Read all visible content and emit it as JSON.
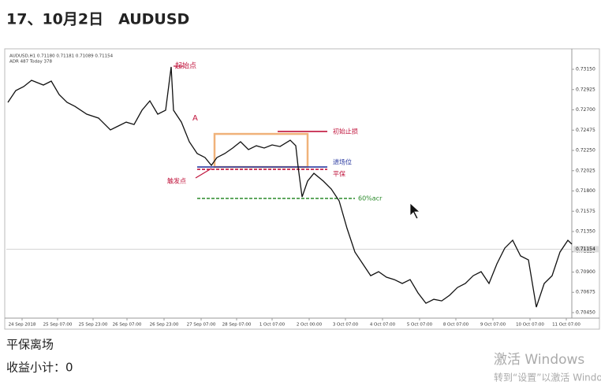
{
  "header": {
    "title": "17、10月2日　AUDUSD"
  },
  "chart_data": {
    "type": "line",
    "info": [
      "AUDUSD,H1  0.71180 0.71181 0.71089 0.71154",
      "ADR 487  Today 378"
    ],
    "series": [
      {
        "color": "#111111",
        "x": [
          2,
          12,
          22,
          32,
          47,
          57,
          67,
          77,
          87,
          102,
          117,
          132,
          142,
          152,
          162,
          172,
          182,
          192,
          202,
          209,
          212,
          222,
          232,
          242,
          252,
          260,
          267,
          277,
          287,
          297,
          307,
          317,
          327,
          337,
          347,
          360,
          367,
          370,
          375,
          382,
          390,
          402,
          412,
          422,
          432,
          442,
          452,
          462,
          472,
          482,
          492,
          502,
          512,
          522,
          532,
          542,
          552,
          562,
          572,
          582,
          592,
          602,
          612,
          622,
          632,
          642,
          652,
          662,
          672,
          682,
          692,
          702,
          712,
          717
        ],
        "values": [
          0.72783,
          0.72914,
          0.72958,
          0.73028,
          0.72975,
          0.73019,
          0.7287,
          0.72783,
          0.72739,
          0.72652,
          0.72608,
          0.72477,
          0.72521,
          0.72564,
          0.72538,
          0.72696,
          0.728,
          0.72652,
          0.72696,
          0.73176,
          0.72696,
          0.72564,
          0.72346,
          0.72215,
          0.72171,
          0.72084,
          0.72171,
          0.72215,
          0.72276,
          0.72346,
          0.72259,
          0.72302,
          0.72276,
          0.72311,
          0.72293,
          0.72363,
          0.72302,
          0.72066,
          0.71734,
          0.71909,
          0.71996,
          0.71909,
          0.71822,
          0.7169,
          0.71385,
          0.71122,
          0.70991,
          0.7086,
          0.70904,
          0.70843,
          0.70816,
          0.70773,
          0.70816,
          0.70668,
          0.70554,
          0.70598,
          0.7058,
          0.70642,
          0.70729,
          0.70773,
          0.7086,
          0.70904,
          0.70773,
          0.70991,
          0.71166,
          0.71253,
          0.71079,
          0.71035,
          0.70511,
          0.70773,
          0.7086,
          0.71122,
          0.71253,
          0.7121
        ]
      }
    ],
    "xlim": [
      0,
      717
    ],
    "xticks": [
      {
        "value": 20,
        "label": "24 Sep 2018"
      },
      {
        "value": 65,
        "label": "25 Sep 07:00"
      },
      {
        "value": 110,
        "label": "25 Sep 23:00"
      },
      {
        "value": 153,
        "label": "26 Sep 07:00"
      },
      {
        "value": 200,
        "label": "26 Sep 23:00"
      },
      {
        "value": 247,
        "label": "27 Sep 07:00"
      },
      {
        "value": 292,
        "label": "28 Sep 07:00"
      },
      {
        "value": 337,
        "label": "1 Oct 07:00"
      },
      {
        "value": 384,
        "label": "2 Oct 00:00"
      },
      {
        "value": 430,
        "label": "3 Oct 07:00"
      },
      {
        "value": 477,
        "label": "4 Oct 07:00"
      },
      {
        "value": 524,
        "label": "5 Oct 07:00"
      },
      {
        "value": 570,
        "label": "8 Oct 07:00"
      },
      {
        "value": 617,
        "label": "9 Oct 07:00"
      },
      {
        "value": 664,
        "label": "10 Oct 07:00"
      },
      {
        "value": 710,
        "label": "11 Oct 07:00"
      }
    ],
    "ylim": [
      0.7038,
      0.7329
    ],
    "yticks": [
      {
        "value": 0.7315,
        "label": "0.73150"
      },
      {
        "value": 0.72925,
        "label": "0.72925"
      },
      {
        "value": 0.727,
        "label": "0.72700"
      },
      {
        "value": 0.72475,
        "label": "0.72475"
      },
      {
        "value": 0.7225,
        "label": "0.72250"
      },
      {
        "value": 0.72025,
        "label": "0.72025"
      },
      {
        "value": 0.718,
        "label": "0.71800"
      },
      {
        "value": 0.71575,
        "label": "0.71575"
      },
      {
        "value": 0.7135,
        "label": "0.71350"
      },
      {
        "value": 0.71125,
        "label": "0.71125"
      },
      {
        "value": 0.709,
        "label": "0.70900"
      },
      {
        "value": 0.70675,
        "label": "0.70675"
      },
      {
        "value": 0.7045,
        "label": "0.70450"
      }
    ],
    "last_price": 0.71154,
    "box": {
      "top": 0.72433,
      "bottom": 0.72066,
      "color": "#f0b27a"
    },
    "levels": [
      {
        "label": "初始止损",
        "value": 0.7246,
        "color": "#c0143c"
      },
      {
        "label": "进场位",
        "value": 0.72066,
        "color": "#2a3aa0"
      },
      {
        "label": "平保",
        "value": 0.7204,
        "color": "#c0143c"
      },
      {
        "label": "60%acr",
        "value": 0.71717,
        "color": "#2a8a2a"
      }
    ],
    "annotations": [
      "起始点",
      "A",
      "触发点"
    ]
  },
  "notes": [
    "平保离场",
    "收益小计：0"
  ],
  "watermark": [
    "激活 Windows",
    "转到“设置”以激活 Windows。"
  ]
}
